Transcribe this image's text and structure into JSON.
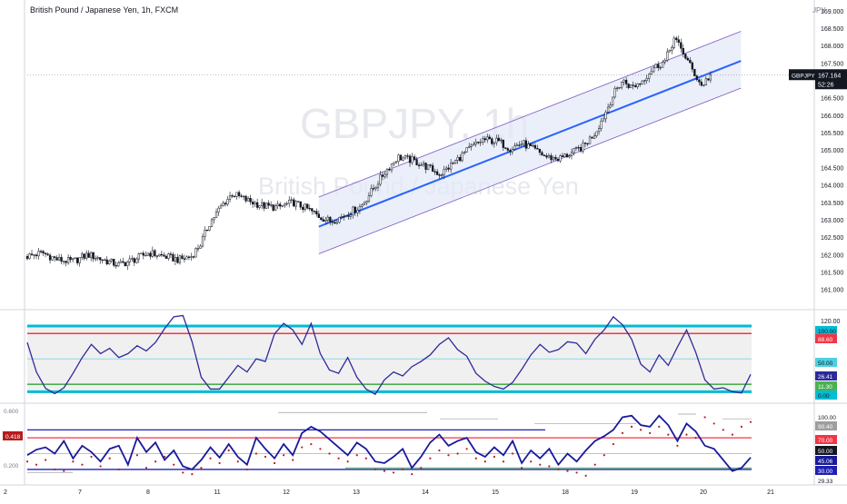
{
  "header": {
    "title": "British Pound / Japanese Yen, 1h, FXCM",
    "currency": "JPY"
  },
  "watermark": {
    "symbol": "GBPJPY, 1h",
    "name": "British Pound / Japanese Yen"
  },
  "colors": {
    "up": "#131722",
    "down": "#131722",
    "channel_mid": "#2962ff",
    "channel_edge": "#7e57c2",
    "osc_line": "#2d2a9b",
    "cyan": "#00bcd4",
    "red": "#f23645",
    "green": "#4caf50",
    "dots": "#b71c1c"
  },
  "chart_data": [
    {
      "type": "candlestick",
      "pane": "price",
      "symbol": "GBPJPY",
      "timeframe": "1h",
      "ylim": [
        160.6,
        169.1
      ],
      "yticks": [
        "169.000",
        "168.500",
        "168.000",
        "167.500",
        "167.000",
        "166.500",
        "166.000",
        "165.500",
        "165.000",
        "164.500",
        "164.000",
        "163.500",
        "163.000",
        "162.500",
        "162.000",
        "161.500",
        "161.000"
      ],
      "xticks": [
        "7",
        "8",
        "11",
        "12",
        "13",
        "14",
        "15",
        "18",
        "19",
        "20",
        "21"
      ],
      "xlabel_left": "2",
      "last_price": "167.164",
      "countdown": "52:26",
      "symbol_tag": "GBPJPY",
      "path": [
        {
          "x": 0,
          "y": 161.95
        },
        {
          "x": 10,
          "y": 162.05
        },
        {
          "x": 20,
          "y": 161.85
        },
        {
          "x": 30,
          "y": 161.8
        },
        {
          "x": 40,
          "y": 162.0
        },
        {
          "x": 50,
          "y": 161.85
        },
        {
          "x": 60,
          "y": 161.7
        },
        {
          "x": 70,
          "y": 161.85
        },
        {
          "x": 80,
          "y": 162.05
        },
        {
          "x": 90,
          "y": 161.95
        },
        {
          "x": 100,
          "y": 161.85
        },
        {
          "x": 108,
          "y": 161.95
        },
        {
          "x": 114,
          "y": 162.3
        },
        {
          "x": 120,
          "y": 162.9
        },
        {
          "x": 128,
          "y": 163.4
        },
        {
          "x": 135,
          "y": 163.75
        },
        {
          "x": 145,
          "y": 163.55
        },
        {
          "x": 155,
          "y": 163.4
        },
        {
          "x": 165,
          "y": 163.35
        },
        {
          "x": 175,
          "y": 163.5
        },
        {
          "x": 185,
          "y": 163.3
        },
        {
          "x": 192,
          "y": 163.1
        },
        {
          "x": 200,
          "y": 162.95
        },
        {
          "x": 210,
          "y": 163.15
        },
        {
          "x": 220,
          "y": 163.4
        },
        {
          "x": 228,
          "y": 163.9
        },
        {
          "x": 236,
          "y": 164.4
        },
        {
          "x": 244,
          "y": 164.8
        },
        {
          "x": 254,
          "y": 164.7
        },
        {
          "x": 264,
          "y": 164.5
        },
        {
          "x": 272,
          "y": 164.3
        },
        {
          "x": 280,
          "y": 164.6
        },
        {
          "x": 290,
          "y": 165.0
        },
        {
          "x": 300,
          "y": 165.3
        },
        {
          "x": 310,
          "y": 165.25
        },
        {
          "x": 318,
          "y": 165.05
        },
        {
          "x": 326,
          "y": 165.2
        },
        {
          "x": 334,
          "y": 165.0
        },
        {
          "x": 342,
          "y": 164.8
        },
        {
          "x": 350,
          "y": 164.75
        },
        {
          "x": 358,
          "y": 164.9
        },
        {
          "x": 366,
          "y": 165.1
        },
        {
          "x": 374,
          "y": 165.5
        },
        {
          "x": 380,
          "y": 166.0
        },
        {
          "x": 386,
          "y": 166.6
        },
        {
          "x": 392,
          "y": 167.0
        },
        {
          "x": 398,
          "y": 166.8
        },
        {
          "x": 404,
          "y": 166.95
        },
        {
          "x": 412,
          "y": 167.35
        },
        {
          "x": 420,
          "y": 167.55
        },
        {
          "x": 426,
          "y": 168.2
        },
        {
          "x": 432,
          "y": 167.8
        },
        {
          "x": 438,
          "y": 167.3
        },
        {
          "x": 444,
          "y": 166.85
        },
        {
          "x": 450,
          "y": 167.15
        }
      ],
      "channel": {
        "start": {
          "x": 192,
          "y": 162.8
        },
        "end": {
          "x": 470,
          "y": 167.56
        },
        "upper_offset": 0.85,
        "lower_offset": 0.78
      }
    },
    {
      "type": "line",
      "pane": "oscillator-1",
      "ylim": [
        -12,
        118
      ],
      "label_top": "120.00",
      "levels": [
        {
          "value": "100.00",
          "kind": "cyan"
        },
        {
          "value": "88.60",
          "kind": "red"
        },
        {
          "value": "50.00",
          "kind": "cyan-light"
        },
        {
          "value": "26.41",
          "kind": "current"
        },
        {
          "value": "11.30",
          "kind": "green"
        },
        {
          "value": "0.00",
          "kind": "cyan"
        }
      ],
      "values": [
        75,
        30,
        5,
        -3,
        6,
        28,
        52,
        72,
        58,
        66,
        52,
        58,
        70,
        62,
        75,
        96,
        114,
        116,
        76,
        22,
        4,
        4,
        22,
        40,
        30,
        50,
        46,
        88,
        104,
        94,
        72,
        104,
        58,
        33,
        28,
        52,
        22,
        4,
        -4,
        18,
        30,
        24,
        38,
        46,
        56,
        72,
        82,
        64,
        54,
        28,
        16,
        8,
        4,
        14,
        34,
        56,
        72,
        60,
        64,
        76,
        74,
        58,
        80,
        94,
        114,
        102,
        80,
        42,
        30,
        56,
        40,
        68,
        94,
        60,
        18,
        4,
        6,
        0,
        -2,
        26.41
      ]
    },
    {
      "type": "line",
      "pane": "oscillator-2",
      "ylim": [
        15,
        108
      ],
      "yticks_left": [
        "0.600",
        "0.200"
      ],
      "left_tag": "0.418",
      "levels": [
        {
          "value": "100.00",
          "kind": "plain"
        },
        {
          "value": "90.40",
          "kind": "gray-tag"
        },
        {
          "value": "70.00",
          "kind": "red"
        },
        {
          "value": "50.00",
          "kind": "black-tag"
        },
        {
          "value": "45.06",
          "kind": "current"
        },
        {
          "value": "30.00",
          "kind": "blue"
        },
        {
          "value": "29.33",
          "kind": "plain"
        }
      ],
      "values": [
        48,
        55,
        58,
        50,
        66,
        44,
        60,
        52,
        40,
        56,
        60,
        36,
        70,
        52,
        64,
        42,
        54,
        34,
        30,
        42,
        58,
        45,
        62,
        46,
        36,
        70,
        56,
        44,
        62,
        48,
        76,
        84,
        78,
        68,
        58,
        48,
        64,
        56,
        40,
        38,
        46,
        56,
        32,
        46,
        64,
        74,
        60,
        66,
        70,
        52,
        46,
        58,
        48,
        66,
        38,
        54,
        44,
        56,
        36,
        50,
        40,
        54,
        66,
        72,
        80,
        96,
        98,
        86,
        84,
        98,
        86,
        66,
        88,
        78,
        60,
        56,
        42,
        28,
        32,
        45.06
      ],
      "dots": [
        40,
        36,
        42,
        30,
        28,
        40,
        36,
        46,
        34,
        44,
        30,
        38,
        48,
        32,
        40,
        46,
        36,
        26,
        24,
        32,
        44,
        38,
        54,
        40,
        30,
        50,
        46,
        38,
        48,
        42,
        58,
        62,
        56,
        50,
        44,
        40,
        48,
        44,
        30,
        28,
        26,
        30,
        24,
        32,
        44,
        54,
        48,
        50,
        56,
        44,
        40,
        46,
        40,
        50,
        32,
        40,
        36,
        34,
        30,
        28,
        26,
        22,
        36,
        48,
        62,
        76,
        84,
        80,
        76,
        84,
        74,
        60,
        74,
        70,
        96,
        88,
        80,
        74,
        84,
        90
      ]
    }
  ]
}
